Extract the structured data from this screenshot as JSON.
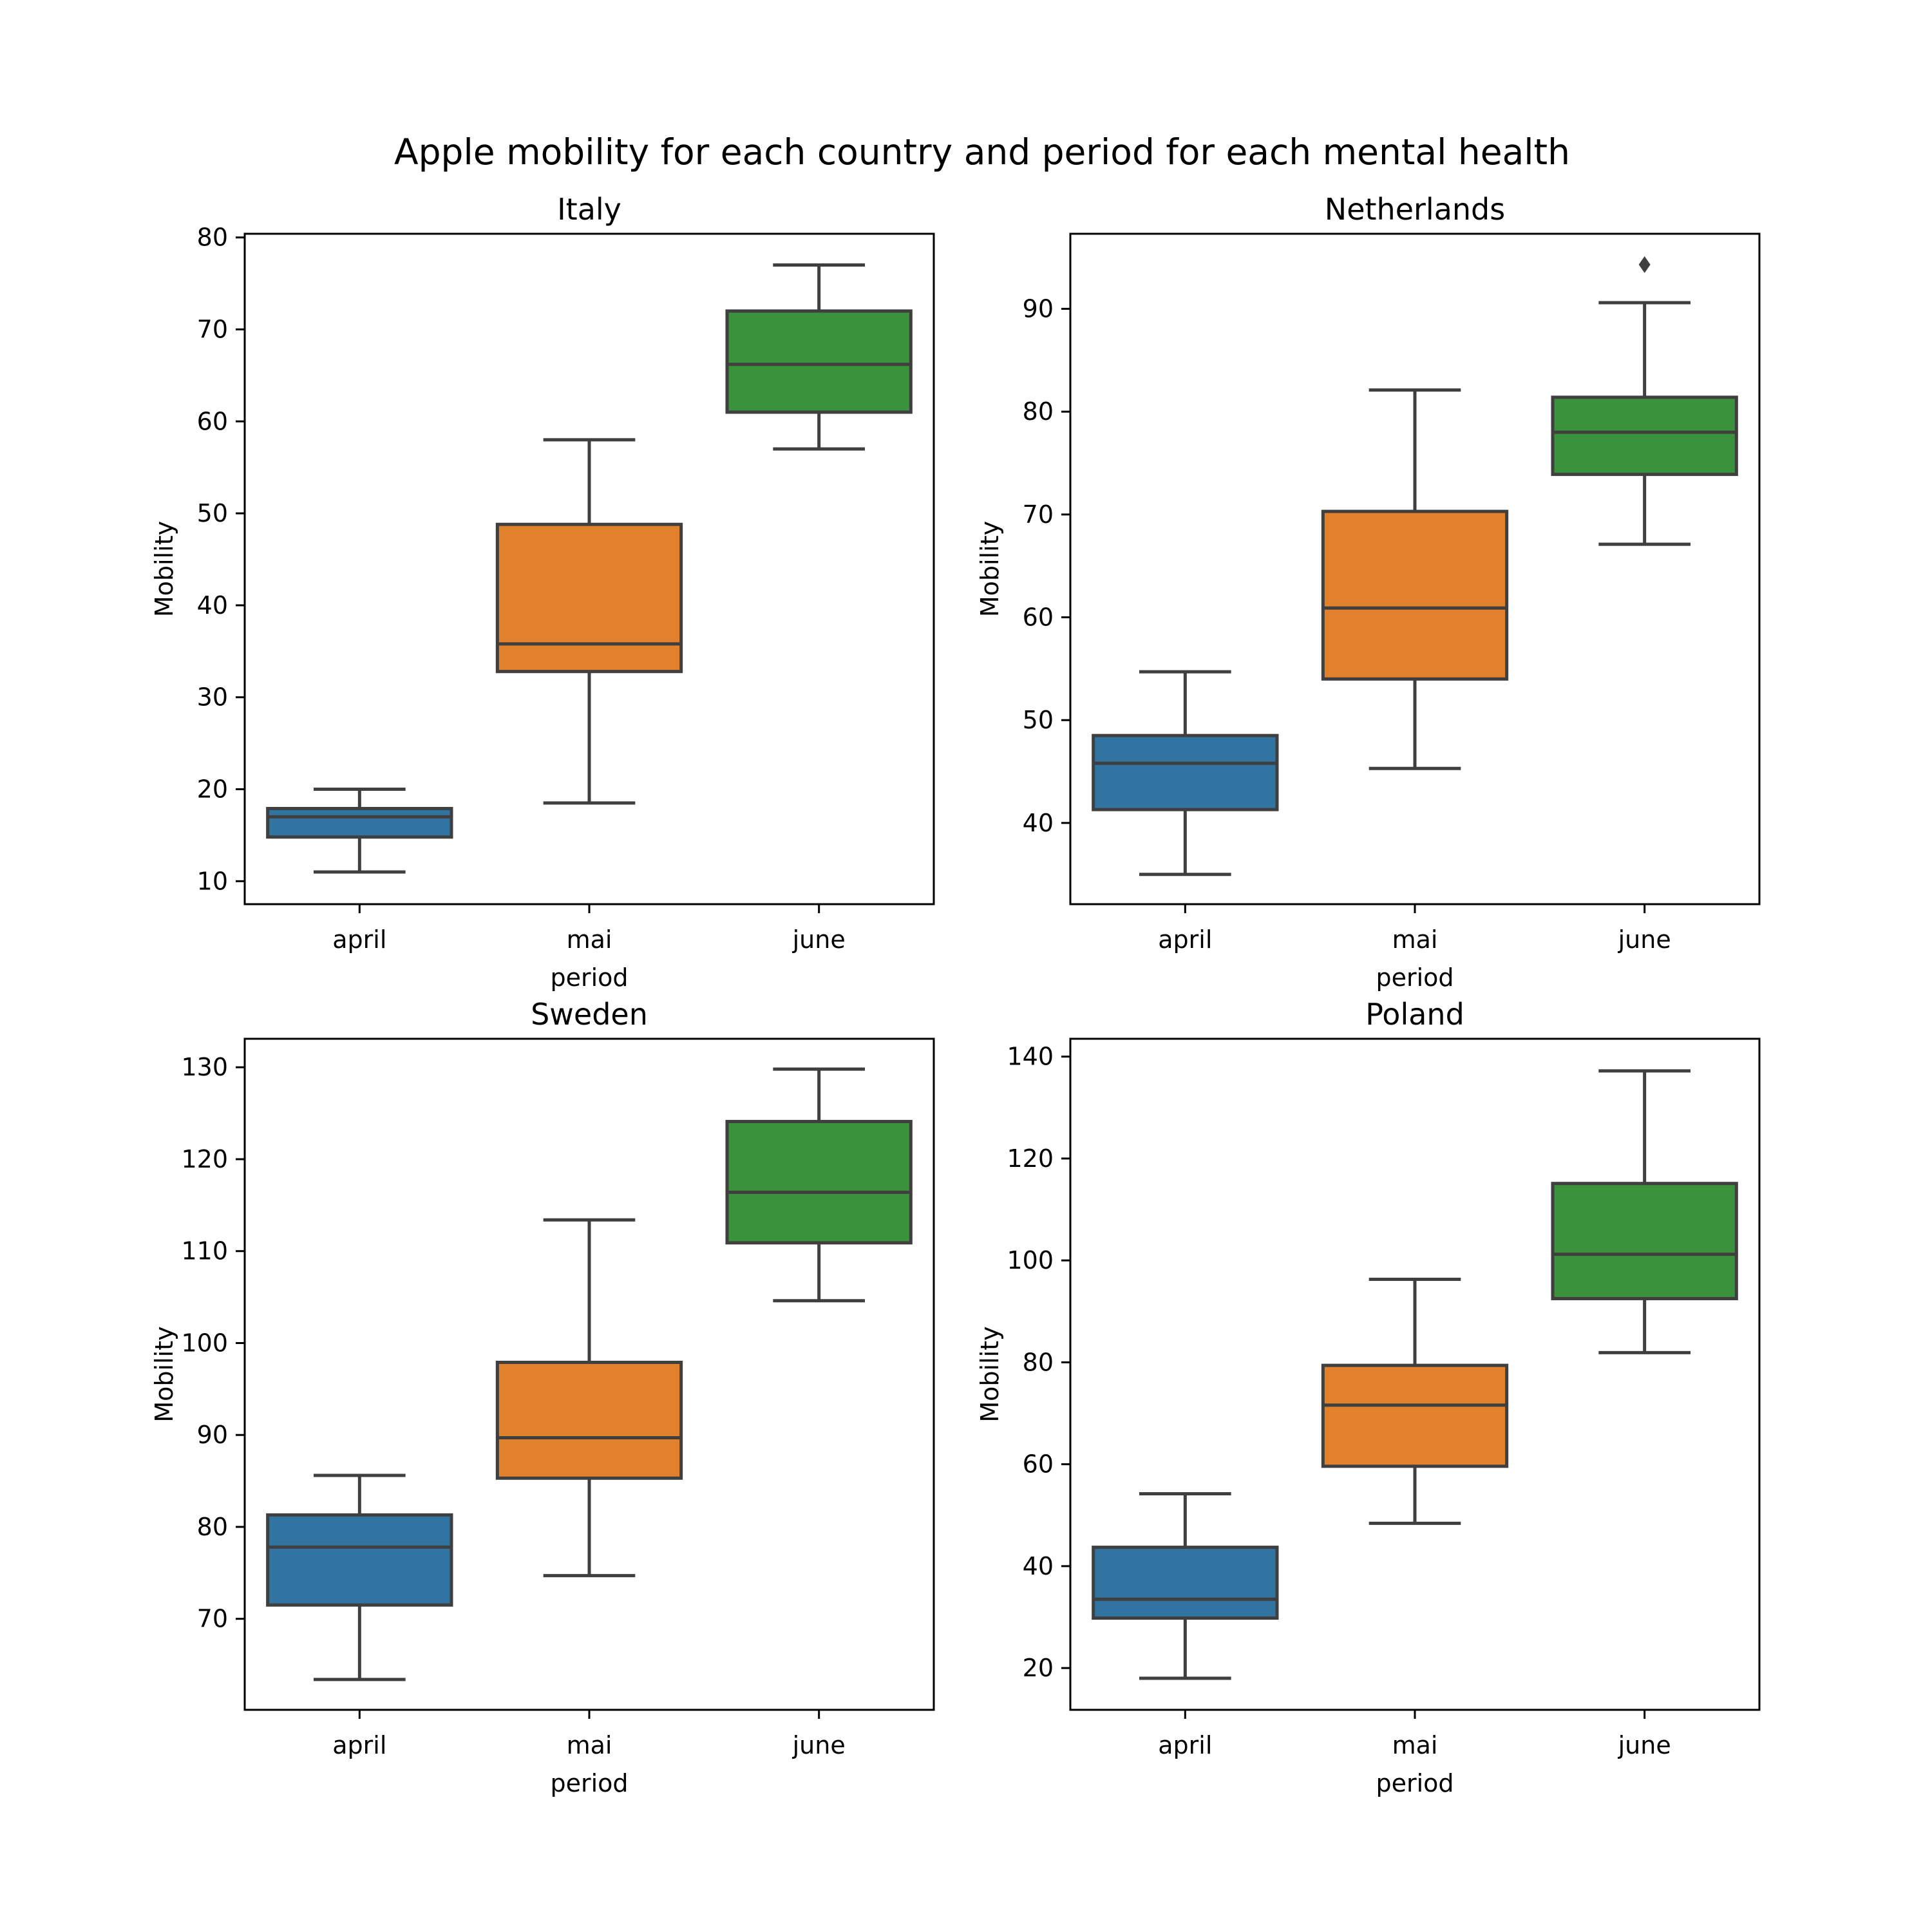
{
  "figure": {
    "title": "Apple mobility for each country and period for each mental health"
  },
  "chart_data": [
    {
      "type": "box",
      "title": "Italy",
      "xlabel": "period",
      "ylabel": "Mobility",
      "categories": [
        "april",
        "mai",
        "june"
      ],
      "colors": [
        "#3274a1",
        "#e1812c",
        "#3a923a"
      ],
      "ylim": [
        7.5,
        80.4
      ],
      "yticks": [
        10,
        20,
        30,
        40,
        50,
        60,
        70,
        80
      ],
      "boxes": [
        {
          "whislo": 11,
          "q1": 14.8,
          "med": 17,
          "q3": 17.9,
          "whishi": 20,
          "fliers": []
        },
        {
          "whislo": 18.5,
          "q1": 32.8,
          "med": 35.8,
          "q3": 48.8,
          "whishi": 58,
          "fliers": []
        },
        {
          "whislo": 57,
          "q1": 61,
          "med": 66.2,
          "q3": 72,
          "whishi": 77,
          "fliers": []
        }
      ]
    },
    {
      "type": "box",
      "title": "Netherlands",
      "xlabel": "period",
      "ylabel": "Mobility",
      "categories": [
        "april",
        "mai",
        "june"
      ],
      "colors": [
        "#3274a1",
        "#e1812c",
        "#3a923a"
      ],
      "ylim": [
        32.1,
        97.3
      ],
      "yticks": [
        40,
        50,
        60,
        70,
        80,
        90
      ],
      "boxes": [
        {
          "whislo": 35,
          "q1": 41.3,
          "med": 45.8,
          "q3": 48.5,
          "whishi": 54.7,
          "fliers": []
        },
        {
          "whislo": 45.3,
          "q1": 54,
          "med": 60.9,
          "q3": 70.3,
          "whishi": 82.1,
          "fliers": []
        },
        {
          "whislo": 67.1,
          "q1": 73.9,
          "med": 78,
          "q3": 81.4,
          "whishi": 90.6,
          "fliers": [
            94.3
          ]
        }
      ]
    },
    {
      "type": "box",
      "title": "Sweden",
      "xlabel": "period",
      "ylabel": "Mobility",
      "categories": [
        "april",
        "mai",
        "june"
      ],
      "colors": [
        "#3274a1",
        "#e1812c",
        "#3a923a"
      ],
      "ylim": [
        60.1,
        133.1
      ],
      "yticks": [
        70,
        80,
        90,
        100,
        110,
        120,
        130
      ],
      "boxes": [
        {
          "whislo": 63.4,
          "q1": 71.5,
          "med": 77.8,
          "q3": 81.3,
          "whishi": 85.6,
          "fliers": []
        },
        {
          "whislo": 74.7,
          "q1": 85.3,
          "med": 89.7,
          "q3": 97.9,
          "whishi": 113.4,
          "fliers": []
        },
        {
          "whislo": 104.6,
          "q1": 110.9,
          "med": 116.4,
          "q3": 124.1,
          "whishi": 129.8,
          "fliers": []
        }
      ]
    },
    {
      "type": "box",
      "title": "Poland",
      "xlabel": "period",
      "ylabel": "Mobility",
      "categories": [
        "april",
        "mai",
        "june"
      ],
      "colors": [
        "#3274a1",
        "#e1812c",
        "#3a923a"
      ],
      "ylim": [
        11.8,
        143.5
      ],
      "yticks": [
        20,
        40,
        60,
        80,
        100,
        120,
        140
      ],
      "boxes": [
        {
          "whislo": 18,
          "q1": 29.8,
          "med": 33.5,
          "q3": 43.7,
          "whishi": 54.2,
          "fliers": []
        },
        {
          "whislo": 48.4,
          "q1": 59.6,
          "med": 71.6,
          "q3": 79.4,
          "whishi": 96.3,
          "fliers": []
        },
        {
          "whislo": 81.9,
          "q1": 92.5,
          "med": 101.2,
          "q3": 115.1,
          "whishi": 137.2,
          "fliers": []
        }
      ]
    }
  ]
}
